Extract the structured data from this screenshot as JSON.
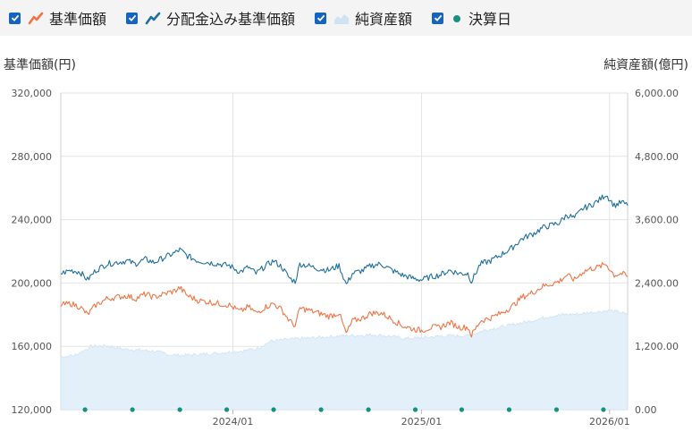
{
  "legend": [
    {
      "label": "基準価額",
      "checked": true,
      "color": "#f07545",
      "icon": "line-icon"
    },
    {
      "label": "分配金込み基準価額",
      "checked": true,
      "color": "#1f6f9e",
      "icon": "line-icon"
    },
    {
      "label": "純資産額",
      "checked": true,
      "color": "#cfe3f3",
      "icon": "area-icon"
    },
    {
      "label": "決算日",
      "checked": true,
      "color": "#17917f",
      "icon": "dot-icon"
    }
  ],
  "chart_data": {
    "type": "line",
    "left_axis_title": "基準価額(円)",
    "right_axis_title": "純資産額(億円)",
    "y_left_ticks": [
      "320,000",
      "280,000",
      "240,000",
      "200,000",
      "160,000",
      "120,000"
    ],
    "y_right_ticks": [
      "6,000.00",
      "4,800.00",
      "3,600.00",
      "2,400.00",
      "1,200.00",
      "0.00"
    ],
    "x_ticks": [
      "2024/01",
      "2025/01",
      "2026/01"
    ],
    "ylim_left": [
      120000,
      320000
    ],
    "ylim_right": [
      0,
      6000
    ],
    "x_range": [
      "2023-02-01",
      "2026-02-05"
    ],
    "grid": true,
    "colors": {
      "nav": "#f07545",
      "nav_dist": "#1f6f9e",
      "assets_fill": "#e3f0fa",
      "assets_line": "#cfe3f3",
      "settlement": "#17917f"
    },
    "settlement_dates": [
      "2023-03-20",
      "2023-06-20",
      "2023-09-20",
      "2023-12-20",
      "2024-03-20",
      "2024-06-20",
      "2024-09-20",
      "2024-12-20",
      "2025-03-20",
      "2025-06-20",
      "2025-09-20",
      "2025-12-20"
    ],
    "series": [
      {
        "name": "分配金込み基準価額",
        "axis": "left",
        "points": [
          [
            "2023-02-01",
            206000
          ],
          [
            "2023-02-20",
            208000
          ],
          [
            "2023-03-10",
            207000
          ],
          [
            "2023-03-25",
            202000
          ],
          [
            "2023-04-10",
            208000
          ],
          [
            "2023-05-01",
            212000
          ],
          [
            "2023-05-20",
            213000
          ],
          [
            "2023-06-10",
            214000
          ],
          [
            "2023-06-25",
            212000
          ],
          [
            "2023-07-15",
            215000
          ],
          [
            "2023-08-01",
            213000
          ],
          [
            "2023-08-20",
            216000
          ],
          [
            "2023-09-10",
            219000
          ],
          [
            "2023-09-20",
            221000
          ],
          [
            "2023-10-05",
            217000
          ],
          [
            "2023-10-25",
            214000
          ],
          [
            "2023-11-15",
            213000
          ],
          [
            "2023-12-05",
            212000
          ],
          [
            "2023-12-25",
            211000
          ],
          [
            "2024-01-15",
            207000
          ],
          [
            "2024-01-31",
            210000
          ],
          [
            "2024-02-15",
            206000
          ],
          [
            "2024-03-05",
            211000
          ],
          [
            "2024-03-20",
            214000
          ],
          [
            "2024-04-05",
            210000
          ],
          [
            "2024-04-20",
            203000
          ],
          [
            "2024-05-01",
            201000
          ],
          [
            "2024-05-10",
            212000
          ],
          [
            "2024-05-25",
            211000
          ],
          [
            "2024-06-15",
            209000
          ],
          [
            "2024-07-05",
            208000
          ],
          [
            "2024-07-25",
            211000
          ],
          [
            "2024-08-08",
            199000
          ],
          [
            "2024-08-20",
            206000
          ],
          [
            "2024-09-10",
            208000
          ],
          [
            "2024-09-25",
            211000
          ],
          [
            "2024-10-15",
            212000
          ],
          [
            "2024-11-05",
            208000
          ],
          [
            "2024-11-25",
            205000
          ],
          [
            "2024-12-15",
            203000
          ],
          [
            "2025-01-01",
            202000
          ],
          [
            "2025-01-20",
            204000
          ],
          [
            "2025-02-05",
            205000
          ],
          [
            "2025-02-25",
            208000
          ],
          [
            "2025-03-15",
            206000
          ],
          [
            "2025-04-01",
            206000
          ],
          [
            "2025-04-08",
            201000
          ],
          [
            "2025-04-25",
            212000
          ],
          [
            "2025-05-15",
            214000
          ],
          [
            "2025-06-05",
            218000
          ],
          [
            "2025-06-25",
            222000
          ],
          [
            "2025-07-15",
            228000
          ],
          [
            "2025-08-05",
            231000
          ],
          [
            "2025-08-25",
            235000
          ],
          [
            "2025-09-15",
            237000
          ],
          [
            "2025-09-25",
            238000
          ],
          [
            "2025-10-10",
            243000
          ],
          [
            "2025-10-25",
            241000
          ],
          [
            "2025-11-10",
            247000
          ],
          [
            "2025-11-25",
            249000
          ],
          [
            "2025-12-10",
            252000
          ],
          [
            "2025-12-25",
            256000
          ],
          [
            "2026-01-10",
            249000
          ],
          [
            "2026-01-25",
            251000
          ],
          [
            "2026-02-05",
            249000
          ]
        ]
      },
      {
        "name": "基準価額",
        "axis": "left",
        "points": [
          [
            "2023-02-01",
            186000
          ],
          [
            "2023-02-20",
            187000
          ],
          [
            "2023-03-10",
            185000
          ],
          [
            "2023-03-25",
            180000
          ],
          [
            "2023-04-10",
            186000
          ],
          [
            "2023-05-01",
            190000
          ],
          [
            "2023-05-20",
            191000
          ],
          [
            "2023-06-10",
            192000
          ],
          [
            "2023-06-25",
            190000
          ],
          [
            "2023-07-15",
            193000
          ],
          [
            "2023-08-01",
            191000
          ],
          [
            "2023-08-20",
            193000
          ],
          [
            "2023-09-10",
            195000
          ],
          [
            "2023-09-20",
            197000
          ],
          [
            "2023-10-05",
            192000
          ],
          [
            "2023-10-25",
            189000
          ],
          [
            "2023-11-15",
            188000
          ],
          [
            "2023-12-05",
            187000
          ],
          [
            "2023-12-25",
            186000
          ],
          [
            "2024-01-15",
            182000
          ],
          [
            "2024-01-31",
            185000
          ],
          [
            "2024-02-15",
            181000
          ],
          [
            "2024-03-05",
            185000
          ],
          [
            "2024-03-20",
            187000
          ],
          [
            "2024-04-05",
            183000
          ],
          [
            "2024-04-20",
            176000
          ],
          [
            "2024-05-01",
            173000
          ],
          [
            "2024-05-10",
            184000
          ],
          [
            "2024-05-25",
            183000
          ],
          [
            "2024-06-15",
            181000
          ],
          [
            "2024-07-05",
            179000
          ],
          [
            "2024-07-25",
            181000
          ],
          [
            "2024-08-08",
            168000
          ],
          [
            "2024-08-20",
            176000
          ],
          [
            "2024-09-10",
            178000
          ],
          [
            "2024-09-25",
            181000
          ],
          [
            "2024-10-15",
            181000
          ],
          [
            "2024-11-05",
            177000
          ],
          [
            "2024-11-25",
            173000
          ],
          [
            "2024-12-15",
            171000
          ],
          [
            "2025-01-01",
            170000
          ],
          [
            "2025-01-20",
            172000
          ],
          [
            "2025-02-05",
            172000
          ],
          [
            "2025-02-25",
            175000
          ],
          [
            "2025-03-15",
            172000
          ],
          [
            "2025-04-01",
            172000
          ],
          [
            "2025-04-08",
            167000
          ],
          [
            "2025-04-25",
            176000
          ],
          [
            "2025-05-15",
            178000
          ],
          [
            "2025-06-05",
            181000
          ],
          [
            "2025-06-25",
            185000
          ],
          [
            "2025-07-15",
            191000
          ],
          [
            "2025-08-05",
            194000
          ],
          [
            "2025-08-25",
            198000
          ],
          [
            "2025-09-15",
            200000
          ],
          [
            "2025-09-25",
            201000
          ],
          [
            "2025-10-10",
            205000
          ],
          [
            "2025-10-25",
            202000
          ],
          [
            "2025-11-10",
            207000
          ],
          [
            "2025-11-25",
            209000
          ],
          [
            "2025-12-10",
            210000
          ],
          [
            "2025-12-25",
            212000
          ],
          [
            "2026-01-10",
            205000
          ],
          [
            "2026-01-25",
            206000
          ],
          [
            "2026-02-05",
            204000
          ]
        ]
      },
      {
        "name": "純資産額",
        "axis": "right",
        "type": "area",
        "points": [
          [
            "2023-02-01",
            1000
          ],
          [
            "2023-03-01",
            1030
          ],
          [
            "2023-04-01",
            1200
          ],
          [
            "2023-05-01",
            1210
          ],
          [
            "2023-06-01",
            1150
          ],
          [
            "2023-07-01",
            1130
          ],
          [
            "2023-08-01",
            1110
          ],
          [
            "2023-09-01",
            1040
          ],
          [
            "2023-10-01",
            1030
          ],
          [
            "2023-11-01",
            1050
          ],
          [
            "2023-12-01",
            1070
          ],
          [
            "2024-01-15",
            1110
          ],
          [
            "2024-02-15",
            1150
          ],
          [
            "2024-03-15",
            1300
          ],
          [
            "2024-05-01",
            1340
          ],
          [
            "2024-06-01",
            1360
          ],
          [
            "2024-07-01",
            1380
          ],
          [
            "2024-08-01",
            1400
          ],
          [
            "2024-09-01",
            1410
          ],
          [
            "2024-10-01",
            1420
          ],
          [
            "2024-11-01",
            1390
          ],
          [
            "2024-12-01",
            1350
          ],
          [
            "2025-01-01",
            1360
          ],
          [
            "2025-02-01",
            1390
          ],
          [
            "2025-03-01",
            1400
          ],
          [
            "2025-04-01",
            1400
          ],
          [
            "2025-05-01",
            1500
          ],
          [
            "2025-06-01",
            1560
          ],
          [
            "2025-07-01",
            1620
          ],
          [
            "2025-08-01",
            1680
          ],
          [
            "2025-09-01",
            1760
          ],
          [
            "2025-10-01",
            1800
          ],
          [
            "2025-11-01",
            1810
          ],
          [
            "2025-12-01",
            1850
          ],
          [
            "2026-01-01",
            1880
          ],
          [
            "2026-01-25",
            1840
          ],
          [
            "2026-02-05",
            1790
          ]
        ]
      }
    ]
  }
}
